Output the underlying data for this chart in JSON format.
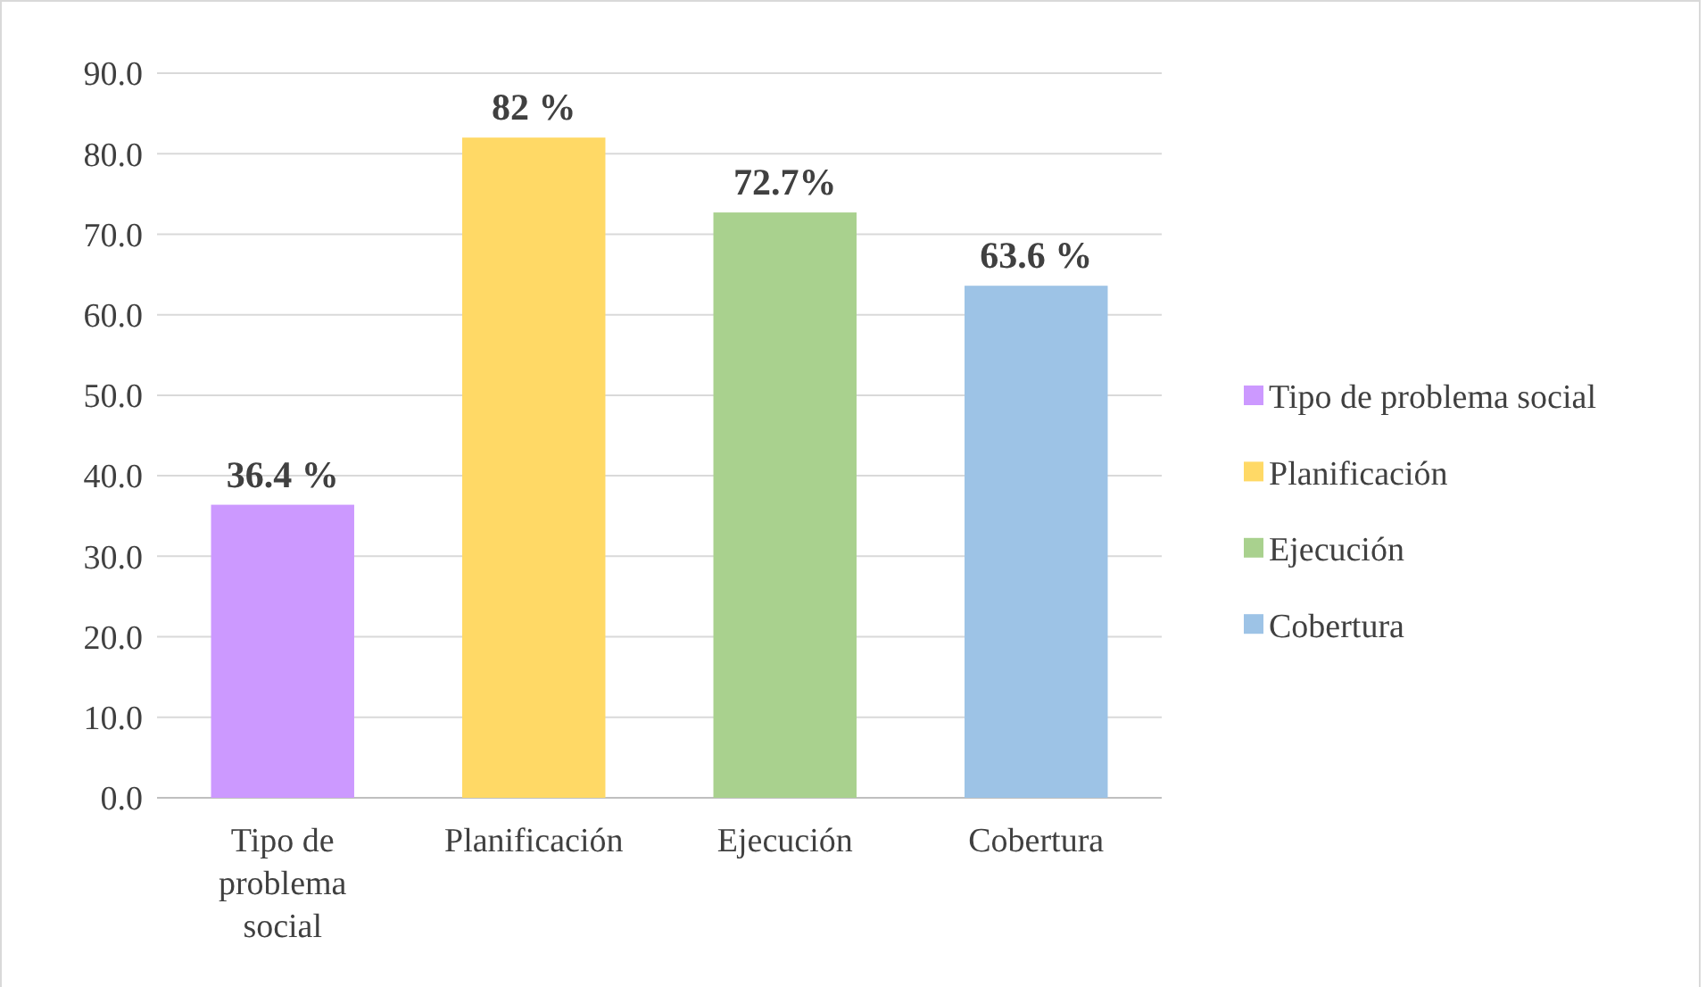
{
  "chart_data": {
    "type": "bar",
    "categories": [
      "Tipo de problema social",
      "Planificación",
      "Ejecución",
      "Cobertura"
    ],
    "series": [
      {
        "name": "Tipo de problema social",
        "color": "#cc99ff",
        "values": [
          36.4,
          null,
          null,
          null
        ],
        "value_labels": [
          "36.4 %",
          null,
          null,
          null
        ]
      },
      {
        "name": "Planificación",
        "color": "#ffd966",
        "values": [
          null,
          82,
          null,
          null
        ],
        "value_labels": [
          null,
          "82 %",
          null,
          null
        ]
      },
      {
        "name": "Ejecución",
        "color": "#a9d18e",
        "values": [
          null,
          null,
          72.7,
          null
        ],
        "value_labels": [
          null,
          null,
          "72.7%",
          null
        ]
      },
      {
        "name": "Cobertura",
        "color": "#9dc3e6",
        "values": [
          null,
          null,
          null,
          63.6
        ],
        "value_labels": [
          null,
          null,
          null,
          "63.6 %"
        ]
      }
    ],
    "ylim": [
      0,
      90
    ],
    "yticks": [
      {
        "value": 0,
        "label": "0.0"
      },
      {
        "value": 10,
        "label": "10.0"
      },
      {
        "value": 20,
        "label": "20.0"
      },
      {
        "value": 30,
        "label": "30.0"
      },
      {
        "value": 40,
        "label": "40.0"
      },
      {
        "value": 50,
        "label": "50.0"
      },
      {
        "value": 60,
        "label": "60.0"
      },
      {
        "value": 70,
        "label": "70.0"
      },
      {
        "value": 80,
        "label": "80.0"
      },
      {
        "value": 90,
        "label": "90.0"
      }
    ],
    "grid": "y",
    "legend": "right"
  }
}
